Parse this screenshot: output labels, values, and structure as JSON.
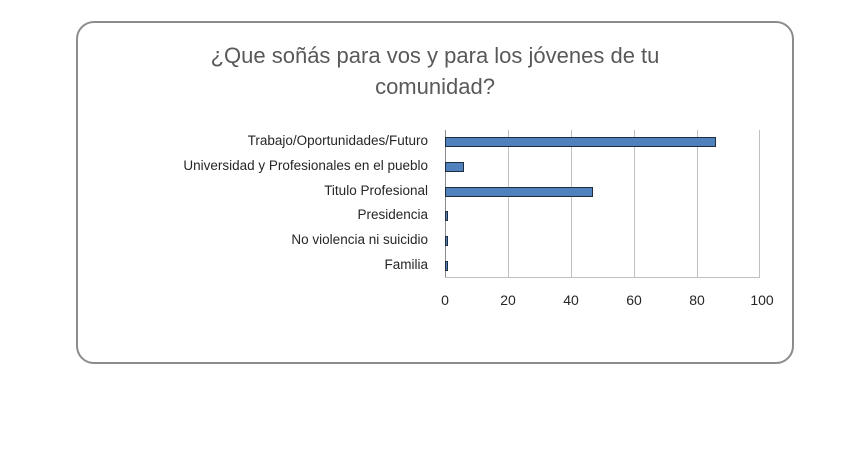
{
  "chart_data": {
    "type": "bar",
    "orientation": "horizontal",
    "title": "¿Que soñás para vos y para los jóvenes de tu comunidad?",
    "categories": [
      "Trabajo/Oportunidades/Futuro",
      "Universidad y Profesionales en el pueblo",
      "Titulo Profesional",
      "Presidencia",
      "No violencia ni suicidio",
      "Familia"
    ],
    "values": [
      86,
      6,
      47,
      1,
      1,
      1
    ],
    "xlabel": "",
    "ylabel": "",
    "xlim": [
      0,
      100
    ],
    "xticks": [
      "0",
      "20",
      "40",
      "60",
      "80",
      "100"
    ],
    "grid": true,
    "legend": null,
    "bar_color": "#4f81bd"
  },
  "title_line1": "¿Que soñás para vos y para los jóvenes de tu",
  "title_line2": "comunidad?"
}
